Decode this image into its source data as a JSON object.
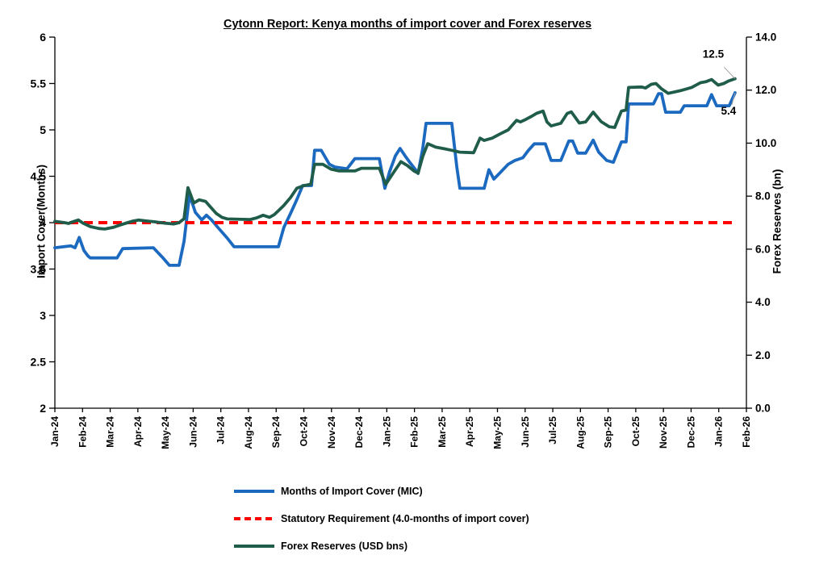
{
  "title": "Cytonn Report: Kenya months of import cover and Forex reserves",
  "legend": {
    "items": [
      {
        "label": "Months of Import Cover (MIC)"
      },
      {
        "label": "Statutory Requirement (4.0-months of import cover)"
      },
      {
        "label": "Forex Reserves (USD bns)"
      }
    ]
  },
  "chart_data": {
    "type": "line",
    "title": "Cytonn Report: Kenya months of import cover and Forex reserves",
    "x_axis": {
      "unit": "month",
      "labels": [
        "Jan-24",
        "Feb-24",
        "Mar-24",
        "Apr-24",
        "May-24",
        "Jun-24",
        "Jul-24",
        "Aug-24",
        "Sep-24",
        "Oct-24",
        "Nov-24",
        "Dec-24",
        "Jan-25",
        "Feb-25",
        "Mar-25",
        "Apr-25",
        "May-25",
        "Jun-25",
        "Jul-25",
        "Aug-25",
        "Sep-25",
        "Oct-25",
        "Nov-25",
        "Dec-25",
        "Jan-26",
        "Feb-26"
      ]
    },
    "y_left": {
      "label": "Import Cover(Months)",
      "min": 2,
      "max": 6,
      "step": 0.5,
      "ticks": [
        "6",
        "5.5",
        "5",
        "4.5",
        "4",
        "3.5",
        "3",
        "2.5",
        "2"
      ]
    },
    "y_right": {
      "label": "Forex Reserves (bn)",
      "min": 0,
      "max": 14,
      "step": 2,
      "ticks": [
        "14.0",
        "12.0",
        "10.0",
        "8.0",
        "6.0",
        "4.0",
        "2.0",
        "0.0"
      ]
    },
    "grid": false,
    "legend_position": "bottom",
    "series": [
      {
        "id": "mic",
        "name": "Months of Import Cover (MIC)",
        "axis": "left",
        "color": "#1C69C0",
        "style": "solid",
        "points": [
          [
            0.0,
            3.73
          ],
          [
            0.58,
            3.75
          ],
          [
            0.73,
            3.73
          ],
          [
            0.88,
            3.84
          ],
          [
            1.05,
            3.7
          ],
          [
            1.2,
            3.64
          ],
          [
            1.28,
            3.62
          ],
          [
            2.25,
            3.62
          ],
          [
            2.45,
            3.72
          ],
          [
            3.56,
            3.73
          ],
          [
            3.91,
            3.62
          ],
          [
            4.14,
            3.54
          ],
          [
            4.49,
            3.54
          ],
          [
            4.67,
            3.8
          ],
          [
            4.87,
            4.3
          ],
          [
            5.08,
            4.11
          ],
          [
            5.31,
            4.03
          ],
          [
            5.48,
            4.08
          ],
          [
            5.66,
            4.03
          ],
          [
            5.89,
            3.95
          ],
          [
            6.24,
            3.83
          ],
          [
            6.48,
            3.74
          ],
          [
            8.08,
            3.74
          ],
          [
            8.28,
            3.95
          ],
          [
            8.52,
            4.1
          ],
          [
            8.75,
            4.25
          ],
          [
            8.96,
            4.4
          ],
          [
            9.28,
            4.4
          ],
          [
            9.39,
            4.78
          ],
          [
            9.63,
            4.78
          ],
          [
            9.92,
            4.63
          ],
          [
            10.12,
            4.6
          ],
          [
            10.56,
            4.58
          ],
          [
            10.85,
            4.69
          ],
          [
            11.73,
            4.69
          ],
          [
            11.93,
            4.37
          ],
          [
            12.1,
            4.55
          ],
          [
            12.31,
            4.72
          ],
          [
            12.48,
            4.8
          ],
          [
            12.66,
            4.72
          ],
          [
            12.83,
            4.65
          ],
          [
            13.04,
            4.57
          ],
          [
            13.13,
            4.53
          ],
          [
            13.3,
            4.8
          ],
          [
            13.42,
            5.07
          ],
          [
            14.35,
            5.07
          ],
          [
            14.53,
            4.6
          ],
          [
            14.64,
            4.37
          ],
          [
            15.52,
            4.37
          ],
          [
            15.69,
            4.57
          ],
          [
            15.87,
            4.47
          ],
          [
            16.1,
            4.54
          ],
          [
            16.39,
            4.63
          ],
          [
            16.63,
            4.67
          ],
          [
            16.92,
            4.7
          ],
          [
            17.12,
            4.78
          ],
          [
            17.33,
            4.85
          ],
          [
            17.73,
            4.85
          ],
          [
            17.94,
            4.67
          ],
          [
            18.29,
            4.67
          ],
          [
            18.58,
            4.88
          ],
          [
            18.72,
            4.88
          ],
          [
            18.9,
            4.75
          ],
          [
            19.19,
            4.75
          ],
          [
            19.46,
            4.89
          ],
          [
            19.66,
            4.76
          ],
          [
            19.95,
            4.67
          ],
          [
            20.19,
            4.65
          ],
          [
            20.48,
            4.87
          ],
          [
            20.65,
            4.87
          ],
          [
            20.74,
            5.28
          ],
          [
            21.64,
            5.28
          ],
          [
            21.82,
            5.39
          ],
          [
            21.93,
            5.39
          ],
          [
            22.08,
            5.19
          ],
          [
            22.61,
            5.19
          ],
          [
            22.75,
            5.26
          ],
          [
            23.57,
            5.26
          ],
          [
            23.74,
            5.38
          ],
          [
            23.92,
            5.26
          ],
          [
            24.38,
            5.26
          ],
          [
            24.59,
            5.4
          ]
        ]
      },
      {
        "id": "statutory",
        "name": "Statutory Requirement (4.0-months of import cover)",
        "axis": "left",
        "color": "#FF0000",
        "style": "dashed",
        "points": [
          [
            0.0,
            4.0
          ],
          [
            24.55,
            4.0
          ]
        ]
      },
      {
        "id": "forex",
        "name": "Forex Reserves (USD bns)",
        "axis": "right",
        "color": "#1F5C4A",
        "style": "solid",
        "points": [
          [
            0.0,
            7.05
          ],
          [
            0.35,
            7.0
          ],
          [
            0.5,
            6.97
          ],
          [
            0.64,
            7.03
          ],
          [
            0.85,
            7.1
          ],
          [
            1.02,
            6.98
          ],
          [
            1.28,
            6.85
          ],
          [
            1.58,
            6.78
          ],
          [
            1.81,
            6.76
          ],
          [
            2.1,
            6.82
          ],
          [
            2.39,
            6.92
          ],
          [
            2.63,
            7.0
          ],
          [
            2.83,
            7.06
          ],
          [
            3.03,
            7.1
          ],
          [
            3.27,
            7.07
          ],
          [
            3.62,
            7.03
          ],
          [
            4.0,
            6.98
          ],
          [
            4.29,
            6.95
          ],
          [
            4.49,
            7.0
          ],
          [
            4.67,
            7.15
          ],
          [
            4.81,
            8.32
          ],
          [
            5.02,
            7.74
          ],
          [
            5.22,
            7.86
          ],
          [
            5.45,
            7.8
          ],
          [
            5.66,
            7.55
          ],
          [
            5.83,
            7.35
          ],
          [
            6.04,
            7.2
          ],
          [
            6.24,
            7.14
          ],
          [
            7.06,
            7.12
          ],
          [
            7.29,
            7.18
          ],
          [
            7.53,
            7.28
          ],
          [
            7.76,
            7.2
          ],
          [
            7.93,
            7.3
          ],
          [
            8.08,
            7.45
          ],
          [
            8.28,
            7.65
          ],
          [
            8.52,
            7.95
          ],
          [
            8.75,
            8.3
          ],
          [
            9.01,
            8.4
          ],
          [
            9.25,
            8.45
          ],
          [
            9.39,
            9.2
          ],
          [
            9.69,
            9.2
          ],
          [
            9.98,
            9.02
          ],
          [
            10.27,
            8.95
          ],
          [
            10.85,
            8.95
          ],
          [
            11.08,
            9.05
          ],
          [
            11.73,
            9.05
          ],
          [
            11.96,
            8.45
          ],
          [
            12.25,
            8.9
          ],
          [
            12.51,
            9.3
          ],
          [
            12.75,
            9.15
          ],
          [
            12.98,
            8.95
          ],
          [
            13.13,
            8.87
          ],
          [
            13.3,
            9.5
          ],
          [
            13.48,
            9.98
          ],
          [
            13.77,
            9.85
          ],
          [
            14.06,
            9.79
          ],
          [
            14.35,
            9.73
          ],
          [
            14.64,
            9.66
          ],
          [
            15.14,
            9.64
          ],
          [
            15.37,
            10.19
          ],
          [
            15.52,
            10.1
          ],
          [
            15.81,
            10.19
          ],
          [
            16.1,
            10.35
          ],
          [
            16.39,
            10.5
          ],
          [
            16.69,
            10.86
          ],
          [
            16.83,
            10.8
          ],
          [
            16.98,
            10.87
          ],
          [
            17.21,
            11.0
          ],
          [
            17.41,
            11.12
          ],
          [
            17.65,
            11.21
          ],
          [
            17.79,
            10.8
          ],
          [
            17.94,
            10.65
          ],
          [
            18.29,
            10.75
          ],
          [
            18.52,
            11.12
          ],
          [
            18.67,
            11.18
          ],
          [
            18.96,
            10.76
          ],
          [
            19.19,
            10.8
          ],
          [
            19.46,
            11.17
          ],
          [
            19.75,
            10.81
          ],
          [
            20.04,
            10.62
          ],
          [
            20.24,
            10.59
          ],
          [
            20.48,
            11.21
          ],
          [
            20.65,
            11.25
          ],
          [
            20.74,
            12.1
          ],
          [
            21.21,
            12.12
          ],
          [
            21.35,
            12.08
          ],
          [
            21.56,
            12.22
          ],
          [
            21.73,
            12.25
          ],
          [
            21.93,
            12.05
          ],
          [
            22.17,
            11.88
          ],
          [
            22.4,
            11.93
          ],
          [
            22.61,
            11.98
          ],
          [
            23.02,
            12.1
          ],
          [
            23.34,
            12.28
          ],
          [
            23.54,
            12.32
          ],
          [
            23.74,
            12.4
          ],
          [
            23.98,
            12.19
          ],
          [
            24.18,
            12.25
          ],
          [
            24.35,
            12.34
          ],
          [
            24.59,
            12.43
          ]
        ]
      }
    ],
    "annotations": [
      {
        "text": "12.5",
        "x": 24.59,
        "value": 12.43,
        "axis": "right"
      },
      {
        "text": "5.4",
        "x": 24.59,
        "value": 5.4,
        "axis": "left"
      }
    ]
  }
}
